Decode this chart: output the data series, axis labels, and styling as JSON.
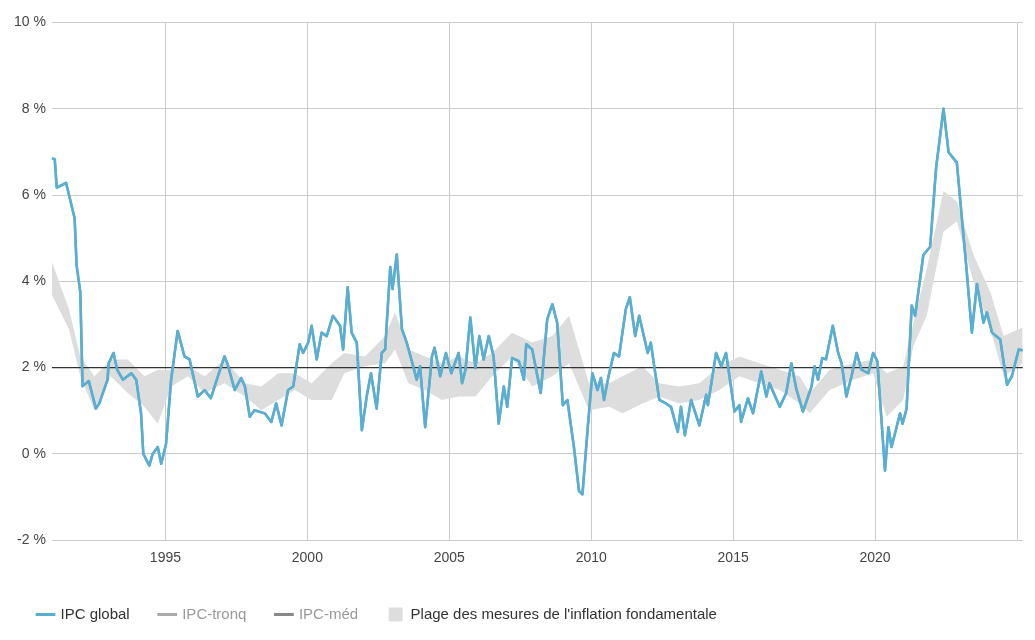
{
  "chart_data": {
    "type": "line",
    "xlim": [
      1991,
      2025.2
    ],
    "xticks": [
      1995,
      2000,
      2005,
      2010,
      2015,
      2020,
      {
        "value": 2025,
        "label": null
      }
    ],
    "ylim": [
      -2,
      10
    ],
    "yticks": [
      {
        "value": -2,
        "label": "-2 %"
      },
      {
        "value": 0,
        "label": "0 %"
      },
      {
        "value": 2,
        "label": "2 %"
      },
      {
        "value": 4,
        "label": "4 %"
      },
      {
        "value": 6,
        "label": "6 %"
      },
      {
        "value": 8,
        "label": "8 %"
      },
      {
        "value": 10,
        "label": "10 %"
      }
    ],
    "grid": true,
    "legend": "bottom",
    "ref_lines": [
      {
        "axis": "y",
        "value": 2,
        "color": "#333333"
      }
    ],
    "series": [
      {
        "name": "IPC global",
        "color": "#5aaed0",
        "x": [
          1991.0,
          1991.1,
          1991.17,
          1991.5,
          1991.8,
          1991.87,
          1992.0,
          1992.08,
          1992.3,
          1992.55,
          1992.67,
          1992.96,
          1993.0,
          1993.17,
          1993.3,
          1993.5,
          1993.8,
          1993.97,
          1994.14,
          1994.22,
          1994.43,
          1994.55,
          1994.73,
          1994.85,
          1995.02,
          1995.2,
          1995.43,
          1995.67,
          1995.85,
          1996.14,
          1996.38,
          1996.6,
          1996.85,
          1997.08,
          1997.18,
          1997.44,
          1997.67,
          1997.8,
          1997.97,
          1998.14,
          1998.5,
          1998.73,
          1998.9,
          1999.09,
          1999.32,
          1999.5,
          1999.73,
          1999.85,
          2000.03,
          2000.15,
          2000.33,
          2000.5,
          2000.68,
          2000.9,
          2001.15,
          2001.26,
          2001.42,
          2001.56,
          2001.74,
          2001.92,
          2002.09,
          2002.24,
          2002.44,
          2002.62,
          2002.74,
          2002.92,
          2003.0,
          2003.15,
          2003.33,
          2003.5,
          2003.7,
          2003.85,
          2003.97,
          2004.15,
          2004.39,
          2004.48,
          2004.68,
          2004.88,
          2005.07,
          2005.33,
          2005.45,
          2005.57,
          2005.74,
          2005.92,
          2006.06,
          2006.21,
          2006.39,
          2006.56,
          2006.74,
          2006.92,
          2007.04,
          2007.21,
          2007.45,
          2007.63,
          2007.71,
          2007.92,
          2008.22,
          2008.45,
          2008.63,
          2008.8,
          2009.0,
          2009.16,
          2009.39,
          2009.57,
          2009.69,
          2009.87,
          2010.04,
          2010.22,
          2010.34,
          2010.45,
          2010.61,
          2010.8,
          2010.98,
          2011.22,
          2011.36,
          2011.55,
          2011.69,
          2011.99,
          2012.1,
          2012.22,
          2012.4,
          2012.63,
          2012.81,
          2013.05,
          2013.16,
          2013.3,
          2013.52,
          2013.81,
          2014.05,
          2014.11,
          2014.4,
          2014.58,
          2014.75,
          2015.05,
          2015.22,
          2015.28,
          2015.52,
          2015.7,
          2015.99,
          2016.17,
          2016.28,
          2016.64,
          2016.87,
          2017.05,
          2017.22,
          2017.46,
          2017.64,
          2017.76,
          2017.87,
          2017.99,
          2018.14,
          2018.27,
          2018.51,
          2018.7,
          2018.82,
          2018.99,
          2019.17,
          2019.35,
          2019.52,
          2019.76,
          2019.93,
          2020.08,
          2020.35,
          2020.47,
          2020.58,
          2020.88,
          2020.97,
          2021.11,
          2021.29,
          2021.41,
          2021.7,
          2021.94,
          2022.15,
          2022.41,
          2022.59,
          2022.88,
          2023.23,
          2023.41,
          2023.59,
          2023.82,
          2023.94,
          2024.12,
          2024.41,
          2024.65,
          2024.82,
          2025.06,
          2025.2
        ],
        "values": [
          6.85,
          6.83,
          6.17,
          6.28,
          5.46,
          4.37,
          3.75,
          1.57,
          1.69,
          1.05,
          1.17,
          1.72,
          2.1,
          2.34,
          1.95,
          1.72,
          1.87,
          1.72,
          0.94,
          0.0,
          -0.27,
          0.0,
          0.16,
          -0.23,
          0.23,
          1.72,
          2.85,
          2.26,
          2.19,
          1.33,
          1.48,
          1.29,
          1.8,
          2.26,
          2.1,
          1.48,
          1.76,
          1.56,
          0.86,
          1.01,
          0.94,
          0.74,
          1.17,
          0.66,
          1.48,
          1.56,
          2.54,
          2.34,
          2.58,
          2.97,
          2.19,
          2.81,
          2.73,
          3.2,
          2.97,
          2.42,
          3.86,
          2.81,
          2.58,
          0.55,
          1.33,
          1.87,
          1.05,
          2.34,
          2.42,
          4.33,
          3.82,
          4.62,
          2.89,
          2.58,
          2.1,
          1.72,
          2.03,
          0.62,
          2.26,
          2.46,
          1.8,
          2.34,
          1.87,
          2.34,
          1.64,
          1.95,
          3.16,
          1.99,
          2.73,
          2.19,
          2.73,
          2.26,
          0.7,
          1.56,
          1.09,
          2.22,
          2.15,
          1.72,
          2.54,
          2.42,
          1.41,
          3.12,
          3.47,
          3.04,
          1.13,
          1.25,
          0.16,
          -0.86,
          -0.94,
          0.55,
          1.87,
          1.48,
          1.76,
          1.25,
          1.8,
          2.34,
          2.26,
          3.36,
          3.63,
          2.73,
          3.2,
          2.34,
          2.58,
          2.03,
          1.25,
          1.17,
          1.09,
          0.51,
          1.09,
          0.43,
          1.25,
          0.66,
          1.37,
          1.13,
          2.34,
          2.03,
          2.34,
          0.98,
          1.13,
          0.74,
          1.29,
          0.94,
          1.91,
          1.33,
          1.64,
          1.09,
          1.41,
          2.1,
          1.52,
          0.98,
          1.33,
          1.56,
          2.03,
          1.72,
          2.22,
          2.19,
          2.97,
          2.34,
          2.1,
          1.33,
          1.8,
          2.34,
          1.95,
          1.87,
          2.34,
          2.15,
          -0.39,
          0.62,
          0.16,
          0.94,
          0.7,
          1.05,
          3.44,
          3.2,
          4.61,
          4.8,
          6.63,
          8.0,
          6.99,
          6.75,
          4.22,
          2.81,
          3.94,
          3.04,
          3.28,
          2.81,
          2.65,
          1.6,
          1.8,
          2.42,
          2.4
        ]
      },
      {
        "name": "IPC-tronq",
        "type": "line",
        "color": "#aaaaaa"
      },
      {
        "name": "IPC-méd",
        "type": "line",
        "color": "#888888"
      },
      {
        "name": "Plage des mesures de l'inflation fondamentale",
        "type": "area",
        "color": "#dddddd",
        "x": [
          1991.0,
          1991.6,
          1992.0,
          1992.5,
          1993.08,
          1993.67,
          1994.26,
          1994.73,
          1995.2,
          1995.8,
          1996.38,
          1997.08,
          1997.8,
          1998.38,
          1998.97,
          1999.56,
          2000.15,
          2000.86,
          2001.3,
          2002.03,
          2002.74,
          2003.09,
          2003.56,
          2004.15,
          2004.74,
          2005.33,
          2005.92,
          2006.51,
          2007.21,
          2007.92,
          2008.63,
          2009.22,
          2009.92,
          2010.63,
          2011.1,
          2011.81,
          2012.4,
          2013.1,
          2013.81,
          2014.52,
          2015.22,
          2015.93,
          2016.64,
          2017.34,
          2017.7,
          2018.4,
          2019.23,
          2019.93,
          2020.41,
          2020.99,
          2021.35,
          2021.82,
          2022.41,
          2022.88,
          2023.47,
          2024.06,
          2024.53,
          2025.2
        ],
        "values": [
          null,
          null,
          null,
          null,
          null,
          null,
          null,
          null,
          null,
          null,
          null,
          null,
          null,
          null,
          null,
          null,
          null,
          null,
          null,
          null,
          null,
          null,
          null,
          null,
          null,
          null,
          null,
          null,
          null,
          null,
          null,
          null,
          null,
          null,
          null,
          null,
          null,
          null,
          null,
          null,
          null,
          null,
          null,
          null,
          null,
          null,
          null,
          null,
          null,
          null,
          null,
          null,
          null,
          null,
          null,
          null,
          null,
          null
        ],
        "lower": [
          3.68,
          2.89,
          1.8,
          1.01,
          1.8,
          1.41,
          1.09,
          0.7,
          1.56,
          1.8,
          1.41,
          1.64,
          1.33,
          1.01,
          1.25,
          1.48,
          1.25,
          1.25,
          1.87,
          2.03,
          2.1,
          2.42,
          1.64,
          1.48,
          1.25,
          1.33,
          1.33,
          1.8,
          2.26,
          1.56,
          1.8,
          2.1,
          1.01,
          1.09,
          0.94,
          1.17,
          1.33,
          1.17,
          1.25,
          1.48,
          1.8,
          1.64,
          1.48,
          1.17,
          0.94,
          1.48,
          1.72,
          1.87,
          0.86,
          1.25,
          2.5,
          3.2,
          5.15,
          5.39,
          3.98,
          2.89,
          1.8,
          2.1
        ],
        "upper": [
          4.45,
          3.36,
          2.26,
          1.8,
          2.19,
          2.19,
          1.8,
          1.95,
          1.95,
          2.03,
          1.8,
          2.19,
          1.64,
          1.56,
          1.87,
          1.87,
          1.64,
          2.1,
          2.34,
          2.26,
          2.73,
          3.28,
          2.42,
          2.26,
          2.1,
          2.26,
          2.1,
          2.34,
          2.81,
          2.58,
          2.73,
          3.2,
          1.64,
          1.64,
          1.8,
          2.03,
          1.64,
          1.56,
          1.64,
          2.03,
          2.26,
          2.1,
          1.95,
          1.8,
          1.41,
          1.95,
          2.1,
          2.19,
          1.87,
          2.03,
          3.04,
          4.29,
          6.09,
          5.85,
          4.61,
          3.75,
          2.73,
          2.93
        ]
      }
    ]
  }
}
